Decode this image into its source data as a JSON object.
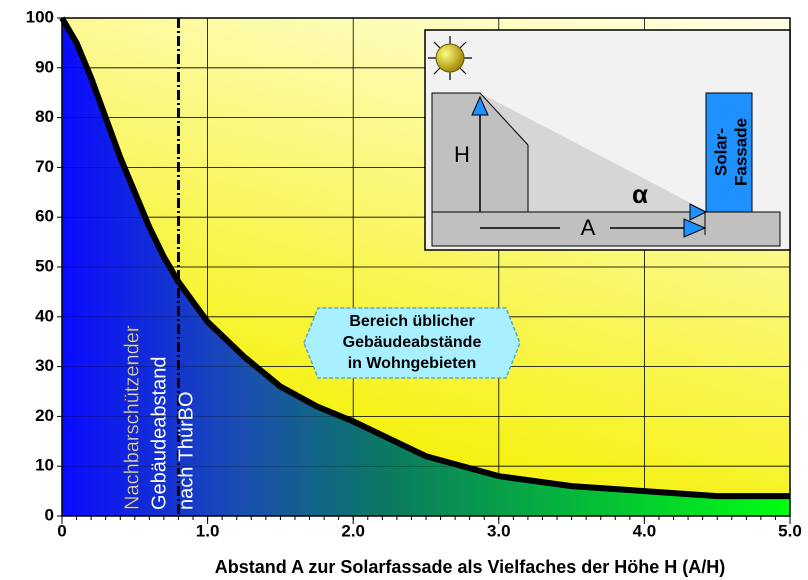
{
  "chart_data": {
    "type": "area",
    "xlabel": "Abstand A zur Solarfassade als Vielfaches der Höhe H (A/H)",
    "x": [
      0,
      0.1,
      0.2,
      0.3,
      0.4,
      0.5,
      0.6,
      0.7,
      0.8,
      0.9,
      1.0,
      1.25,
      1.5,
      1.75,
      2.0,
      2.5,
      3.0,
      3.5,
      4.0,
      4.5,
      5.0
    ],
    "values": [
      100,
      95,
      88,
      80,
      72,
      65,
      58,
      52,
      47,
      43,
      39,
      32,
      26,
      22,
      19,
      12,
      8,
      6,
      5,
      4,
      4
    ],
    "color": "#000000",
    "xlim": [
      0,
      5
    ],
    "ylim": [
      0,
      100
    ],
    "xticks": [
      0,
      {
        "value": 1,
        "label": "1.0"
      },
      {
        "value": 2,
        "label": "2.0"
      },
      {
        "value": 3,
        "label": "3.0"
      },
      {
        "value": 4,
        "label": "4.0"
      },
      {
        "value": 5,
        "label": "5.0"
      }
    ],
    "yticks": [
      0,
      10,
      20,
      30,
      40,
      50,
      60,
      70,
      80,
      90,
      100
    ],
    "grid": true,
    "reference_line": {
      "x": 0.8,
      "lines": [
        "Nachbarschützender",
        "Gebäudeabstand",
        "nach ThürBO"
      ]
    },
    "region_note": [
      "Bereich üblicher",
      "Gebäudeabstände",
      "in Wohngebieten"
    ],
    "inset": {
      "height_label": "H",
      "distance_label": "A",
      "angle_label": "α",
      "facade_label": [
        "Solar-",
        "Fassade"
      ]
    }
  }
}
